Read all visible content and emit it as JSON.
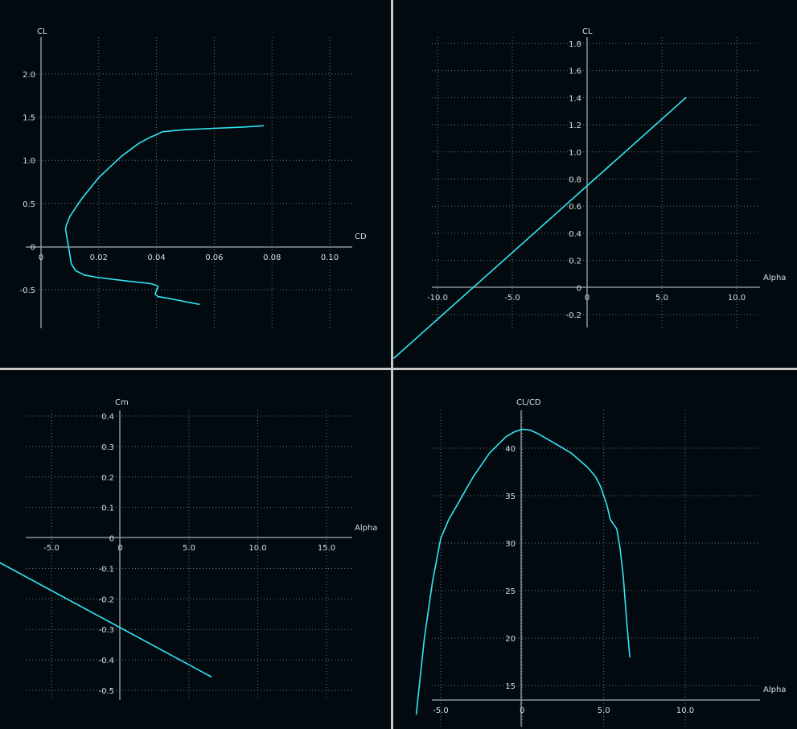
{
  "colors": {
    "background": "#020a10",
    "curve": "#33e6f2",
    "grid": "#6f7780",
    "axis": "#8a9198",
    "text": "#d8dcdf",
    "divider": "#c8c8c8"
  },
  "chart_data": [
    {
      "id": "cl-cd",
      "type": "line",
      "xlabel": "CD",
      "ylabel": "CL",
      "xlim": [
        0,
        0.1
      ],
      "ylim": [
        -0.5,
        2.0
      ],
      "xticks": [
        0,
        0.02,
        0.04,
        0.06,
        0.08,
        0.1
      ],
      "xtick_labels": [
        "0",
        "0.02",
        "0.04",
        "0.06",
        "0.08",
        "0.10"
      ],
      "yticks": [
        -0.5,
        0,
        0.5,
        1.0,
        1.5,
        2.0
      ],
      "ytick_labels": [
        "-0.5",
        "0",
        "0.5",
        "1.0",
        "1.5",
        "2.0"
      ],
      "grid": true,
      "series": [
        {
          "x": [
            0.0548,
            0.05,
            0.044,
            0.0405,
            0.0395,
            0.0405,
            0.04,
            0.038,
            0.03,
            0.02,
            0.015,
            0.012,
            0.0105,
            0.01,
            0.0095,
            0.009,
            0.0085,
            0.0088,
            0.01,
            0.014,
            0.02,
            0.028,
            0.034,
            0.038,
            0.0395,
            0.042,
            0.05,
            0.06,
            0.07,
            0.077
          ],
          "y": [
            -0.67,
            -0.64,
            -0.6,
            -0.58,
            -0.55,
            -0.47,
            -0.45,
            -0.43,
            -0.4,
            -0.36,
            -0.33,
            -0.28,
            -0.2,
            -0.1,
            0.0,
            0.1,
            0.2,
            0.25,
            0.35,
            0.55,
            0.8,
            1.05,
            1.2,
            1.27,
            1.29,
            1.33,
            1.355,
            1.37,
            1.385,
            1.4
          ]
        }
      ]
    },
    {
      "id": "cl-alpha",
      "type": "line",
      "xlabel": "Alpha",
      "ylabel": "CL",
      "xlim": [
        -10,
        10
      ],
      "ylim": [
        -0.2,
        1.8
      ],
      "xticks": [
        -10,
        -5,
        0,
        5,
        10
      ],
      "xtick_labels": [
        "-10.0",
        "-5.0",
        "0",
        "5.0",
        "10.0"
      ],
      "yticks": [
        -0.2,
        0,
        0.2,
        0.4,
        0.6,
        0.8,
        1.0,
        1.2,
        1.4,
        1.6,
        1.8
      ],
      "ytick_labels": [
        "-0.2",
        "0",
        "0.2",
        "0.4",
        "0.6",
        "0.8",
        "1.0",
        "1.2",
        "1.4",
        "1.6",
        "1.8"
      ],
      "grid": true,
      "series": [
        {
          "x": [
            -12.9,
            6.6
          ],
          "y": [
            -0.52,
            1.4
          ]
        }
      ]
    },
    {
      "id": "cm-alpha",
      "type": "line",
      "xlabel": "Alpha",
      "ylabel": "Cm",
      "xlim": [
        -5,
        15
      ],
      "ylim": [
        -0.5,
        0.4
      ],
      "xticks": [
        -5,
        0,
        5,
        10,
        15
      ],
      "xtick_labels": [
        "-5.0",
        "0",
        "5.0",
        "10.0",
        "15.0"
      ],
      "yticks": [
        -0.5,
        -0.4,
        -0.3,
        -0.2,
        -0.1,
        0,
        0.1,
        0.2,
        0.3,
        0.4
      ],
      "ytick_labels": [
        "-0.5",
        "-0.4",
        "-0.3",
        "-0.2",
        "-0.1",
        "0",
        "0.1",
        "0.2",
        "0.3",
        "0.4"
      ],
      "grid": true,
      "series": [
        {
          "x": [
            -8.8,
            6.6
          ],
          "y": [
            -0.08,
            -0.455
          ]
        }
      ]
    },
    {
      "id": "clcd-alpha",
      "type": "line",
      "xlabel": "Alpha",
      "ylabel": "CL/CD",
      "xlim": [
        -5,
        10
      ],
      "ylim": [
        15,
        40
      ],
      "xticks": [
        -5,
        0,
        5,
        10
      ],
      "xtick_labels": [
        "-5.0",
        "0",
        "5.0",
        "10.0"
      ],
      "yticks": [
        15,
        20,
        25,
        30,
        35,
        40
      ],
      "yticks_labels_note": "",
      "ytick_labels": [
        "15",
        "20",
        "25",
        "30",
        "35",
        "40"
      ],
      "grid": true,
      "series": [
        {
          "x": [
            -6.5,
            -6.0,
            -5.5,
            -5.0,
            -4.5,
            -4.0,
            -3.0,
            -2.0,
            -1.0,
            -0.5,
            0,
            0.5,
            1.0,
            2.0,
            3.0,
            4.0,
            4.5,
            4.8,
            5.0,
            5.2,
            5.4,
            5.6,
            5.8,
            6.0,
            6.2,
            6.4,
            6.6
          ],
          "y": [
            12.0,
            20.0,
            26.0,
            30.5,
            32.5,
            34.0,
            37.0,
            39.5,
            41.2,
            41.7,
            42.0,
            41.9,
            41.5,
            40.5,
            39.5,
            38.0,
            37.0,
            36.0,
            35.0,
            34.0,
            32.5,
            32.0,
            31.5,
            29.5,
            26.5,
            22.0,
            18.0
          ]
        }
      ]
    }
  ]
}
